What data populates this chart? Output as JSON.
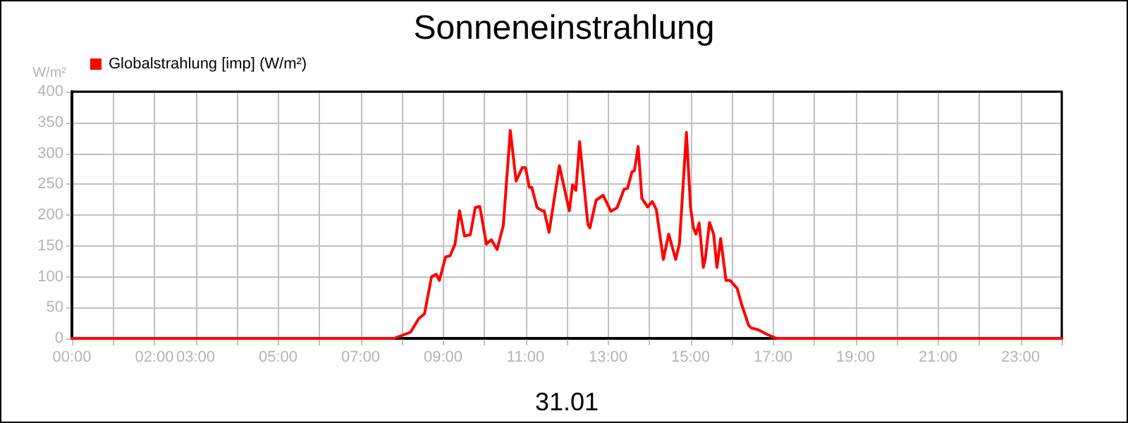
{
  "chart_data": {
    "type": "line",
    "title": "Sonneneinstrahlung",
    "xlabel": "31.01",
    "ylabel": "W/m²",
    "xlim": [
      0,
      24
    ],
    "ylim": [
      0,
      400
    ],
    "yticks": [
      0,
      50,
      100,
      150,
      200,
      250,
      300,
      350,
      400
    ],
    "xticks": [
      {
        "value": 0,
        "label": "00:00"
      },
      {
        "value": 1,
        "label": null
      },
      {
        "value": 2,
        "label": "02:00"
      },
      {
        "value": 3,
        "label": "03:00"
      },
      {
        "value": 4,
        "label": null
      },
      {
        "value": 5,
        "label": "05:00"
      },
      {
        "value": 6,
        "label": null
      },
      {
        "value": 7,
        "label": "07:00"
      },
      {
        "value": 8,
        "label": null
      },
      {
        "value": 9,
        "label": "09:00"
      },
      {
        "value": 10,
        "label": null
      },
      {
        "value": 11,
        "label": "11:00"
      },
      {
        "value": 12,
        "label": null
      },
      {
        "value": 13,
        "label": "13:00"
      },
      {
        "value": 14,
        "label": null
      },
      {
        "value": 15,
        "label": "15:00"
      },
      {
        "value": 16,
        "label": null
      },
      {
        "value": 17,
        "label": "17:00"
      },
      {
        "value": 18,
        "label": null
      },
      {
        "value": 19,
        "label": "19:00"
      },
      {
        "value": 20,
        "label": null
      },
      {
        "value": 21,
        "label": "21:00"
      },
      {
        "value": 22,
        "label": null
      },
      {
        "value": 23,
        "label": "23:00"
      },
      {
        "value": 24,
        "label": null
      }
    ],
    "grid": true,
    "legend": "top left",
    "marker": "none",
    "line_style": "solid",
    "series": [
      {
        "name": "Globalstrahlung [imp] (W/m²)",
        "color": "#ff0000",
        "x": [
          0,
          7.81,
          8.21,
          8.41,
          8.55,
          8.72,
          8.83,
          8.91,
          9.06,
          9.17,
          9.29,
          9.4,
          9.52,
          9.66,
          9.78,
          9.89,
          10.05,
          10.17,
          10.31,
          10.46,
          10.63,
          10.77,
          10.92,
          11.0,
          11.09,
          11.15,
          11.28,
          11.4,
          11.45,
          11.57,
          11.82,
          12.06,
          12.14,
          12.22,
          12.31,
          12.51,
          12.56,
          12.71,
          12.88,
          13.07,
          13.22,
          13.39,
          13.47,
          13.58,
          13.64,
          13.73,
          13.82,
          13.96,
          14.07,
          14.17,
          14.34,
          14.47,
          14.64,
          14.73,
          14.9,
          15.0,
          15.07,
          15.13,
          15.21,
          15.31,
          15.36,
          15.46,
          15.56,
          15.64,
          15.73,
          15.86,
          15.96,
          16.13,
          16.24,
          16.41,
          16.47,
          16.64,
          16.87,
          17.09,
          24
        ],
        "values": [
          0,
          0,
          10,
          32,
          40,
          100,
          104,
          94,
          132,
          134,
          153,
          207,
          166,
          168,
          212,
          214,
          153,
          160,
          144,
          183,
          337,
          255,
          277,
          277,
          245,
          245,
          212,
          207,
          207,
          172,
          280,
          207,
          249,
          240,
          319,
          185,
          179,
          224,
          232,
          206,
          212,
          242,
          243,
          270,
          272,
          311,
          227,
          213,
          222,
          209,
          128,
          169,
          128,
          153,
          334,
          212,
          179,
          169,
          187,
          115,
          130,
          188,
          169,
          115,
          162,
          94,
          94,
          81,
          55,
          21,
          17,
          14,
          6,
          0,
          0
        ]
      }
    ]
  }
}
